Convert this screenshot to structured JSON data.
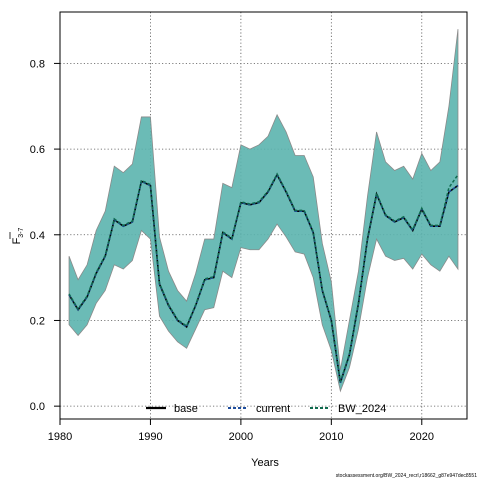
{
  "chart_data": {
    "type": "line",
    "xlabel": "Years",
    "ylabel": "F",
    "ylabel_sub": "3-7",
    "xlim": [
      1980,
      2025
    ],
    "ylim": [
      -0.03,
      0.92
    ],
    "x_ticks": [
      1980,
      1990,
      2000,
      2010,
      2020
    ],
    "y_ticks": [
      0.0,
      0.2,
      0.4,
      0.6,
      0.8
    ],
    "y_tick_labels": [
      "0.0",
      "0.2",
      "0.4",
      "0.6",
      "0.8"
    ],
    "grid": true,
    "legend_position": "bottom",
    "footnote": "stockassessment.org/BW_2024_recrl,r18662_g87e947dec8551",
    "colors": {
      "band": "#5bb4ae",
      "band_edge": "#8a8a8a",
      "base": "#000000",
      "current": "#1f4e9e",
      "bw2024": "#0f6b4f"
    },
    "x": [
      1981,
      1982,
      1983,
      1984,
      1985,
      1986,
      1987,
      1988,
      1989,
      1990,
      1991,
      1992,
      1993,
      1994,
      1995,
      1996,
      1997,
      1998,
      1999,
      2000,
      2001,
      2002,
      2003,
      2004,
      2005,
      2006,
      2007,
      2008,
      2009,
      2010,
      2011,
      2012,
      2013,
      2014,
      2015,
      2016,
      2017,
      2018,
      2019,
      2020,
      2021,
      2022,
      2023,
      2024
    ],
    "lower": [
      0.19,
      0.165,
      0.19,
      0.24,
      0.27,
      0.33,
      0.32,
      0.34,
      0.41,
      0.39,
      0.21,
      0.175,
      0.15,
      0.135,
      0.18,
      0.225,
      0.23,
      0.315,
      0.3,
      0.37,
      0.365,
      0.365,
      0.39,
      0.425,
      0.395,
      0.36,
      0.355,
      0.3,
      0.19,
      0.13,
      0.035,
      0.09,
      0.18,
      0.3,
      0.39,
      0.35,
      0.34,
      0.345,
      0.32,
      0.355,
      0.33,
      0.315,
      0.35,
      0.32
    ],
    "upper": [
      0.35,
      0.295,
      0.33,
      0.41,
      0.455,
      0.56,
      0.545,
      0.565,
      0.675,
      0.675,
      0.395,
      0.315,
      0.27,
      0.245,
      0.31,
      0.39,
      0.39,
      0.52,
      0.51,
      0.61,
      0.6,
      0.61,
      0.63,
      0.68,
      0.64,
      0.585,
      0.585,
      0.535,
      0.38,
      0.29,
      0.085,
      0.2,
      0.315,
      0.49,
      0.64,
      0.57,
      0.55,
      0.56,
      0.53,
      0.59,
      0.55,
      0.57,
      0.7,
      0.88
    ],
    "series": [
      {
        "name": "base",
        "style": "solid",
        "values": [
          0.26,
          0.225,
          0.255,
          0.31,
          0.35,
          0.435,
          0.42,
          0.43,
          0.525,
          0.515,
          0.285,
          0.235,
          0.2,
          0.185,
          0.235,
          0.295,
          0.3,
          0.405,
          0.39,
          0.475,
          0.47,
          0.475,
          0.5,
          0.54,
          0.5,
          0.455,
          0.455,
          0.405,
          0.27,
          0.2,
          0.055,
          0.12,
          0.24,
          0.39,
          0.495,
          0.445,
          0.43,
          0.44,
          0.41,
          0.46,
          0.42,
          0.42,
          0.5,
          0.515
        ]
      },
      {
        "name": "current",
        "style": "dashed",
        "values": [
          0.26,
          0.225,
          0.255,
          0.31,
          0.35,
          0.435,
          0.42,
          0.43,
          0.525,
          0.515,
          0.285,
          0.235,
          0.2,
          0.185,
          0.235,
          0.295,
          0.3,
          0.405,
          0.39,
          0.475,
          0.47,
          0.475,
          0.5,
          0.54,
          0.5,
          0.455,
          0.455,
          0.405,
          0.27,
          0.2,
          0.055,
          0.12,
          0.24,
          0.39,
          0.495,
          0.445,
          0.43,
          0.44,
          0.41,
          0.46,
          0.42,
          0.42,
          0.5,
          0.515
        ]
      },
      {
        "name": "BW_2024",
        "style": "dashed",
        "values": [
          0.262,
          0.227,
          0.257,
          0.312,
          0.352,
          0.437,
          0.422,
          0.432,
          0.527,
          0.517,
          0.287,
          0.237,
          0.202,
          0.187,
          0.237,
          0.297,
          0.302,
          0.407,
          0.392,
          0.477,
          0.472,
          0.477,
          0.502,
          0.542,
          0.502,
          0.457,
          0.457,
          0.407,
          0.272,
          0.202,
          0.057,
          0.122,
          0.242,
          0.392,
          0.497,
          0.447,
          0.432,
          0.442,
          0.412,
          0.462,
          0.422,
          0.422,
          0.51,
          0.54
        ]
      }
    ]
  }
}
